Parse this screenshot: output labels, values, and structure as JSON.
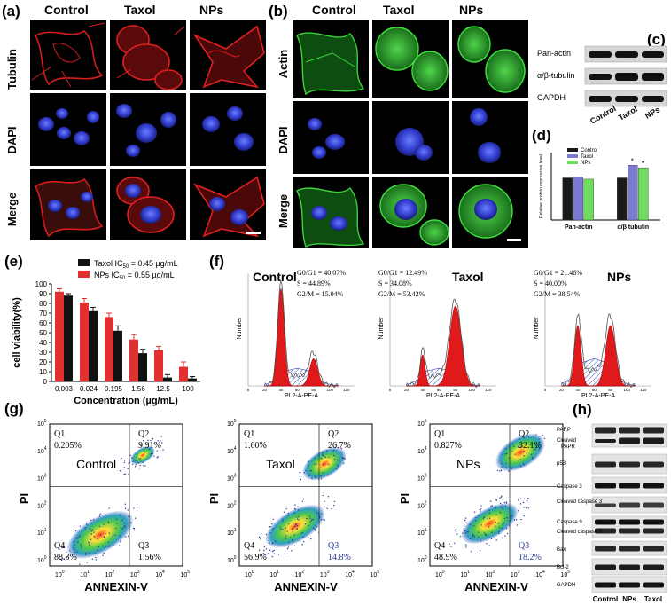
{
  "panel_a": {
    "label": "(a)",
    "cols": [
      "Control",
      "Taxol",
      "NPs"
    ],
    "rows": [
      "Tubulin",
      "DAPI",
      "Merge"
    ]
  },
  "panel_b": {
    "label": "(b)",
    "cols": [
      "Control",
      "Taxol",
      "NPs"
    ],
    "rows": [
      "Actin",
      "DAPI",
      "Merge"
    ]
  },
  "panel_c": {
    "label": "(c)",
    "proteins": [
      "Pan-actin",
      "α/β-tubulin",
      "GAPDH"
    ],
    "lanes": [
      "Control",
      "Taxol",
      "NPs"
    ]
  },
  "panel_d": {
    "label": "(d)",
    "colors": {
      "Control": "#1a1a1a",
      "Taxol": "#7b7bd0",
      "NPs": "#6ddc5f"
    }
  },
  "panel_e": {
    "label": "(e)",
    "legend": [
      "Taxol IC",
      "50",
      " = 0.45 µg/mL",
      "NPs IC",
      "50",
      " = 0.55 µg/mL"
    ],
    "colors": {
      "Taxol": "#111111",
      "NPs": "#e03030"
    }
  },
  "panel_f": {
    "label": "(f)",
    "histograms": [
      {
        "title": "Control",
        "g0g1": "G0/G1 = 40.07%",
        "s": "S = 44.89%",
        "g2m": "G2/M = 15.04%"
      },
      {
        "title": "Taxol",
        "g0g1": "G0/G1 = 12.49%",
        "s": "S = 34.08%",
        "g2m": "G2/M = 53.42%"
      },
      {
        "title": "NPs",
        "g0g1": "G0/G1 = 21.46%",
        "s": "S = 40.00%",
        "g2m": "G2/M = 38.54%"
      }
    ],
    "ylabel": "Number",
    "xlabel": "PL2-A-PE-A",
    "ticks": [
      "0",
      "20",
      "40",
      "60",
      "80",
      "100",
      "120"
    ]
  },
  "panel_g": {
    "label": "(g)",
    "plots": [
      {
        "name": "Control",
        "q1": "Q1",
        "q1v": "0.205%",
        "q2": "Q2",
        "q2v": "9.91%",
        "q3": "Q3",
        "q3v": "1.56%",
        "q4": "Q4",
        "q4v": "88.3%"
      },
      {
        "name": "Taxol",
        "q1": "Q1",
        "q1v": "1.60%",
        "q2": "Q2",
        "q2v": "26.7%",
        "q3": "Q3",
        "q3v": "14.8%",
        "q4": "Q4",
        "q4v": "56.9%"
      },
      {
        "name": "NPs",
        "q1": "Q1",
        "q1v": "0.827%",
        "q2": "Q2",
        "q2v": "32.1%",
        "q3": "Q3",
        "q3v": "18.2%",
        "q4": "Q4",
        "q4v": "48.9%"
      }
    ],
    "ylabel": "PI",
    "xlabel": "ANNEXIN-V",
    "decades": [
      "0",
      "1",
      "2",
      "3",
      "4",
      "5"
    ]
  },
  "panel_h": {
    "label": "(h)",
    "proteins": [
      "PARP",
      "Cleaved PAPR",
      "p53",
      "Caspase 3",
      "Cleaved caspase 3",
      "Caspase 9",
      "Cleaved caspase 9",
      "Bax",
      "Bcl-2",
      "GAPDH"
    ],
    "lanes": [
      "Control",
      "NPs",
      "Taxol"
    ]
  },
  "chart_data": [
    {
      "type": "bar",
      "panel": "d",
      "ylabel": "Relative protein expression level",
      "categories": [
        "Pan-actin",
        "α/β tubulin"
      ],
      "series": [
        {
          "name": "Control",
          "values": [
            1.0,
            1.0
          ]
        },
        {
          "name": "Taxol",
          "values": [
            1.02,
            1.3
          ]
        },
        {
          "name": "NPs",
          "values": [
            0.97,
            1.24
          ]
        }
      ],
      "ylim": [
        0,
        1.6
      ],
      "annotations": [
        "*",
        "*"
      ]
    },
    {
      "type": "bar",
      "panel": "e",
      "ylabel": "cell viability(%)",
      "xlabel": "Concentration (µg/mL)",
      "categories": [
        "0.003",
        "0.024",
        "0.195",
        "1.56",
        "12.5",
        "100"
      ],
      "yticks": [
        "0",
        "10",
        "20",
        "30",
        "40",
        "50",
        "60",
        "70",
        "80",
        "90",
        "100"
      ],
      "ylim": [
        0,
        100
      ],
      "series": [
        {
          "name": "Taxol",
          "values": [
            88,
            72,
            52,
            29,
            4,
            3
          ],
          "errors": [
            2,
            4,
            5,
            4,
            3,
            2
          ]
        },
        {
          "name": "NPs",
          "values": [
            92,
            81,
            66,
            43,
            32,
            15
          ],
          "errors": [
            3,
            4,
            4,
            5,
            4,
            5
          ]
        }
      ]
    }
  ]
}
